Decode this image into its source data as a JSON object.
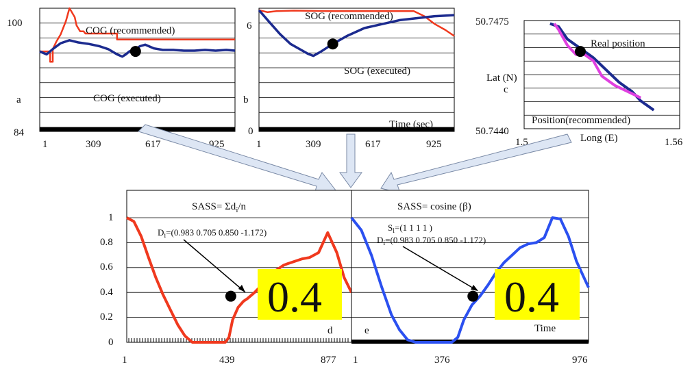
{
  "colors": {
    "red": "#f0391e",
    "navy": "#1c2b8f",
    "magenta": "#e040e0",
    "blue": "#2b50f0",
    "yellow": "#ffff00",
    "arrow_fill": "#dde6f4",
    "arrow_stroke": "#7a8aa6"
  },
  "chart_data": [
    {
      "id": "a",
      "type": "line",
      "panel_letter": "a",
      "y_ticks": [
        "100",
        "84"
      ],
      "y_range": [
        84,
        100
      ],
      "x_ticks": [
        "1",
        "309",
        "617",
        "925"
      ],
      "x_range": [
        1,
        1110
      ],
      "series": [
        {
          "name": "COG (recommended)",
          "color": "#f0391e",
          "x": [
            1,
            60,
            60,
            75,
            75,
            95,
            120,
            150,
            170,
            180,
            200,
            210,
            230,
            250,
            260,
            300,
            440,
            440,
            620,
            1110
          ],
          "y": [
            94.2,
            94.2,
            92.8,
            92.8,
            94.5,
            95.5,
            96.5,
            98.3,
            100,
            99.6,
            98.8,
            97.7,
            96.9,
            96.9,
            96.6,
            96.6,
            96.6,
            95.8,
            95.8,
            95.8
          ]
        },
        {
          "name": "COG (executed)",
          "color": "#1c2b8f",
          "x": [
            1,
            40,
            80,
            120,
            170,
            220,
            280,
            340,
            390,
            440,
            470,
            490,
            510,
            540,
            570,
            600,
            650,
            700,
            760,
            820,
            880,
            940,
            1000,
            1060,
            1110
          ],
          "y": [
            94.2,
            93.8,
            94.6,
            95.3,
            95.7,
            95.4,
            95.2,
            94.9,
            94.5,
            93.8,
            93.5,
            93.8,
            94.2,
            94.4,
            94.9,
            95.1,
            94.6,
            94.4,
            94.4,
            94.3,
            94.3,
            94.4,
            94.3,
            94.4,
            94.3
          ]
        }
      ],
      "marker": {
        "x": 545,
        "y": 94.2
      },
      "annotations": [
        "COG (recommended)",
        "COG (executed)"
      ]
    },
    {
      "id": "b",
      "type": "line",
      "panel_letter": "b",
      "y_ticks": [
        "6",
        "0"
      ],
      "y_range": [
        0,
        6
      ],
      "x_ticks": [
        "1",
        "309",
        "617",
        "925"
      ],
      "x_range": [
        1,
        1110
      ],
      "series": [
        {
          "name": "SOG (recommended)",
          "color": "#f0391e",
          "x": [
            1,
            50,
            100,
            200,
            400,
            600,
            800,
            880,
            940,
            1000,
            1060,
            1110
          ],
          "y": [
            5.9,
            5.8,
            5.85,
            5.88,
            5.85,
            5.85,
            5.85,
            5.85,
            5.6,
            5.2,
            4.9,
            4.6
          ]
        },
        {
          "name": "SOG (executed)",
          "color": "#1c2b8f",
          "x": [
            1,
            60,
            120,
            180,
            240,
            280,
            310,
            350,
            420,
            500,
            600,
            700,
            800,
            900,
            1000,
            1110
          ],
          "y": [
            5.9,
            5.3,
            4.7,
            4.2,
            3.9,
            3.7,
            3.6,
            3.8,
            4.2,
            4.6,
            5.0,
            5.2,
            5.4,
            5.5,
            5.6,
            5.65
          ]
        }
      ],
      "marker": {
        "x": 420,
        "y": 4.2
      },
      "annotations": [
        "SOG (recommended)",
        "SOG (executed)",
        "Time (sec)"
      ]
    },
    {
      "id": "c",
      "type": "line",
      "panel_letter": "c",
      "y_ticks": [
        "50.7475",
        "50.7440"
      ],
      "y_range": [
        50.744,
        50.7475
      ],
      "x_ticks": [
        "1.5",
        "1.56"
      ],
      "x_range": [
        1.524,
        1.56
      ],
      "series": [
        {
          "name": "Real position",
          "color": "#1c2b8f",
          "x": [
            1.53,
            1.532,
            1.534,
            1.537,
            1.54,
            1.543,
            1.546,
            1.549,
            1.551,
            1.553,
            1.554
          ],
          "y": [
            50.7474,
            50.7473,
            50.7469,
            50.7466,
            50.7463,
            50.7459,
            50.7455,
            50.7452,
            50.7449,
            50.7447,
            50.7446
          ]
        },
        {
          "name": "Position(recommended)",
          "color": "#e040e0",
          "x": [
            1.531,
            1.532,
            1.534,
            1.536,
            1.538,
            1.54,
            1.542,
            1.545,
            1.548,
            1.551
          ],
          "y": [
            50.7474,
            50.7472,
            50.7467,
            50.7464,
            50.7464,
            50.7462,
            50.7457,
            50.7454,
            50.7452,
            50.745
          ]
        }
      ],
      "marker": {
        "x": 1.537,
        "y": 50.7465
      },
      "annotations": [
        "Real position",
        "Lat (N)",
        "Position(recommended)",
        "Long (E)"
      ]
    },
    {
      "id": "d",
      "type": "line",
      "panel_letter": "d",
      "title": "SASS= Σd",
      "title_sub": "i",
      "title_end": "/n",
      "y_ticks": [
        "1",
        "0.8",
        "0.6",
        "0.4",
        "0.2",
        "0"
      ],
      "y_range": [
        0,
        1
      ],
      "x_ticks": [
        "1",
        "439",
        "877"
      ],
      "x_range": [
        1,
        1230
      ],
      "series": [
        {
          "name": "SASS",
          "color": "#f0391e",
          "x": [
            1,
            40,
            80,
            120,
            160,
            200,
            240,
            280,
            320,
            360,
            400,
            440,
            470,
            500,
            520,
            540,
            560,
            580,
            610,
            640,
            660,
            700,
            740,
            780,
            820,
            860,
            880,
            900,
            960,
            1000,
            1050,
            1100,
            1150,
            1190,
            1230
          ],
          "y": [
            1,
            0.97,
            0.85,
            0.68,
            0.52,
            0.38,
            0.26,
            0.14,
            0.05,
            0.0,
            0.0,
            0.0,
            0.0,
            0.0,
            0.0,
            0.0,
            0.04,
            0.18,
            0.28,
            0.33,
            0.35,
            0.4,
            0.46,
            0.52,
            0.58,
            0.62,
            0.63,
            0.64,
            0.67,
            0.68,
            0.72,
            0.88,
            0.72,
            0.52,
            0.4
          ]
        }
      ],
      "marker": {
        "x": 570,
        "y": 0.37
      },
      "label_lines": [
        "D",
        "i",
        "=(0.983 0.705 0.850 -1.172)"
      ],
      "value_box": "0.4"
    },
    {
      "id": "e",
      "type": "line",
      "panel_letter": "e",
      "title": "SASS= cosine (β)",
      "x_ticks": [
        "1",
        "376",
        "976"
      ],
      "x_range": [
        1,
        1180
      ],
      "series": [
        {
          "name": "SASS",
          "color": "#2b50f0",
          "x": [
            1,
            50,
            100,
            150,
            200,
            240,
            280,
            320,
            360,
            400,
            440,
            470,
            500,
            530,
            560,
            600,
            640,
            680,
            720,
            760,
            800,
            840,
            880,
            920,
            960,
            1000,
            1040,
            1080,
            1120,
            1180
          ],
          "y": [
            1,
            0.9,
            0.7,
            0.45,
            0.22,
            0.1,
            0.02,
            0.0,
            0.0,
            0.0,
            0.0,
            0.0,
            0.0,
            0.04,
            0.18,
            0.3,
            0.37,
            0.46,
            0.56,
            0.64,
            0.7,
            0.76,
            0.79,
            0.8,
            0.84,
            1.0,
            0.99,
            0.85,
            0.65,
            0.44
          ]
        }
      ],
      "marker": {
        "x": 605,
        "y": 0.37
      },
      "label_s": [
        "S",
        "i",
        "=(1 1 1 1 )"
      ],
      "label_d": [
        "D",
        "i",
        "=(0.983 0.705 0.850 -1.172)"
      ],
      "value_box": "0.4",
      "annotations": [
        "Time"
      ]
    }
  ]
}
